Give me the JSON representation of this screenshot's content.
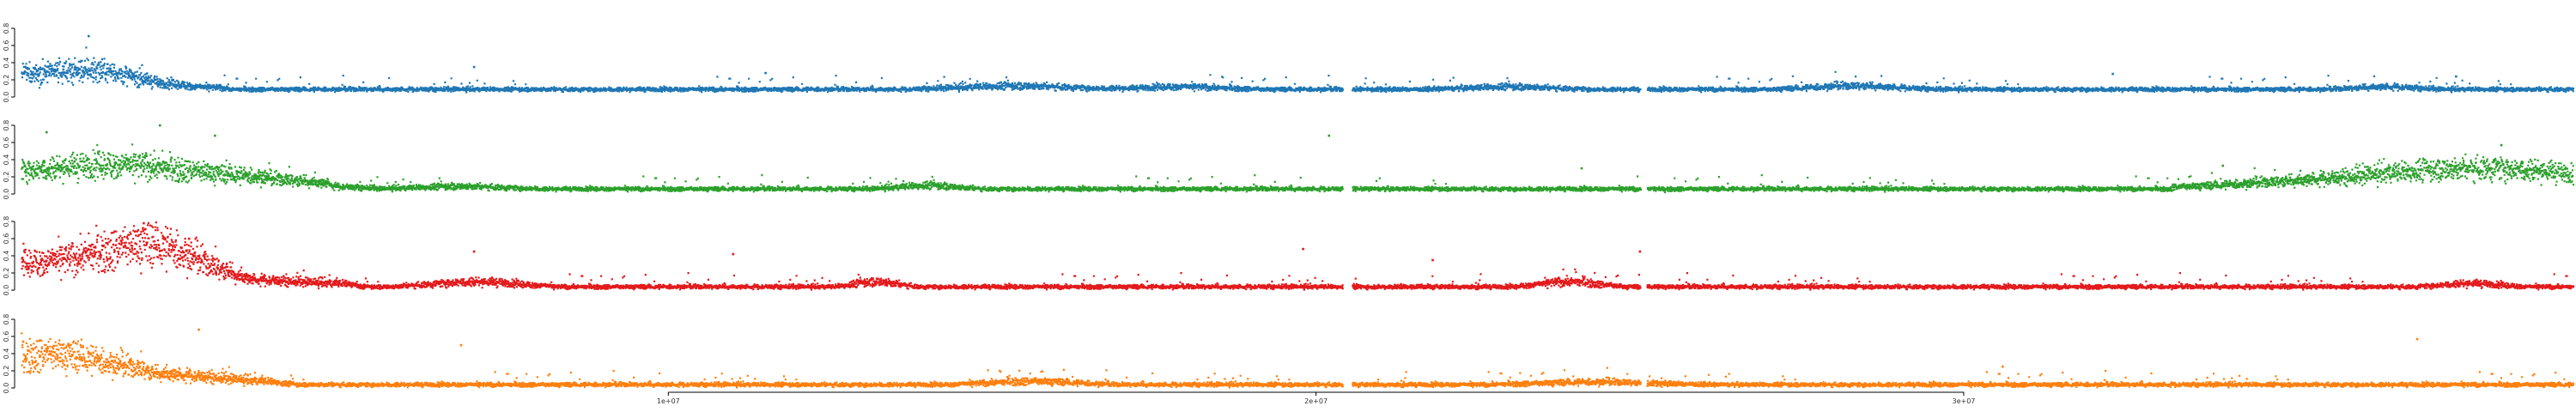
{
  "chart_data": {
    "type": "scatter",
    "title": "",
    "xlabel": "",
    "ylabel": "",
    "xlim": [
      0,
      39400000
    ],
    "x_ticks": [
      {
        "value": 10000000,
        "label": "1e+07"
      },
      {
        "value": 20000000,
        "label": "2e+07"
      },
      {
        "value": 30000000,
        "label": "3e+07"
      }
    ],
    "grid": false,
    "legend": "none",
    "panels": [
      {
        "color": "#1f77b4",
        "ylim": [
          0,
          0.8
        ],
        "y_ticks": [
          "0.0",
          "0.2",
          "0.4",
          "0.6",
          "0.8"
        ],
        "baseline": 0.1,
        "bumps": [
          [
            0.0,
            0.08,
            0.12
          ],
          [
            0.6,
            0.05,
            0.08
          ],
          [
            1.3,
            0.02,
            0.06
          ],
          [
            15.4,
            0.04,
            0.04
          ],
          [
            17.9,
            0.03,
            0.03
          ],
          [
            23.0,
            0.03,
            0.03
          ],
          [
            28.3,
            0.03,
            0.04
          ],
          [
            36.5,
            0.02,
            0.03
          ]
        ],
        "outliers": [
          [
            1.05,
            0.71
          ],
          [
            0.25,
            0.3
          ],
          [
            7.0,
            0.35
          ],
          [
            11.5,
            0.28
          ],
          [
            32.3,
            0.27
          ],
          [
            37.6,
            0.24
          ]
        ]
      },
      {
        "color": "#2ca02c",
        "ylim": [
          0,
          0.8
        ],
        "y_ticks": [
          "0.0",
          "0.2",
          "0.4",
          "0.6",
          "0.8"
        ],
        "baseline": 0.07,
        "bumps": [
          [
            0.0,
            0.12,
            0.2
          ],
          [
            1.8,
            0.05,
            0.12
          ],
          [
            3.9,
            0.04,
            0.06
          ],
          [
            6.8,
            0.03,
            0.03
          ],
          [
            14.0,
            0.02,
            0.04
          ],
          [
            37.2,
            0.1,
            0.17
          ],
          [
            38.6,
            0.06,
            0.1
          ]
        ],
        "outliers": [
          [
            0.4,
            0.72
          ],
          [
            2.15,
            0.8
          ],
          [
            3.0,
            0.68
          ],
          [
            20.2,
            0.68
          ],
          [
            24.1,
            0.3
          ],
          [
            38.3,
            0.57
          ],
          [
            34.0,
            0.33
          ]
        ]
      },
      {
        "color": "#e31a1c",
        "ylim": [
          0,
          0.8
        ],
        "y_ticks": [
          "0.0",
          "0.2",
          "0.4",
          "0.6",
          "0.8"
        ],
        "baseline": 0.05,
        "bumps": [
          [
            0.0,
            0.13,
            0.22
          ],
          [
            1.5,
            0.05,
            0.15
          ],
          [
            2.1,
            0.03,
            0.2
          ],
          [
            7.0,
            0.03,
            0.06
          ],
          [
            13.2,
            0.015,
            0.06
          ],
          [
            23.9,
            0.02,
            0.06
          ],
          [
            37.8,
            0.02,
            0.04
          ]
        ],
        "outliers": [
          [
            1.9,
            0.78
          ],
          [
            7.0,
            0.45
          ],
          [
            11.0,
            0.42
          ],
          [
            19.8,
            0.48
          ],
          [
            21.8,
            0.35
          ],
          [
            25.0,
            0.45
          ],
          [
            2.6,
            0.6
          ]
        ]
      },
      {
        "color": "#ff7f0e",
        "ylim": [
          0,
          0.8
        ],
        "y_ticks": [
          "0.0",
          "0.2",
          "0.4",
          "0.6",
          "0.8"
        ],
        "baseline": 0.05,
        "bumps": [
          [
            0.0,
            0.1,
            0.13
          ],
          [
            0.35,
            0.04,
            0.2
          ],
          [
            1.8,
            0.06,
            0.06
          ],
          [
            15.6,
            0.03,
            0.04
          ],
          [
            24.3,
            0.04,
            0.03
          ]
        ],
        "outliers": [
          [
            2.75,
            0.68
          ],
          [
            6.8,
            0.5
          ],
          [
            0.5,
            0.42
          ],
          [
            30.6,
            0.25
          ],
          [
            37.0,
            0.57
          ]
        ]
      }
    ]
  }
}
